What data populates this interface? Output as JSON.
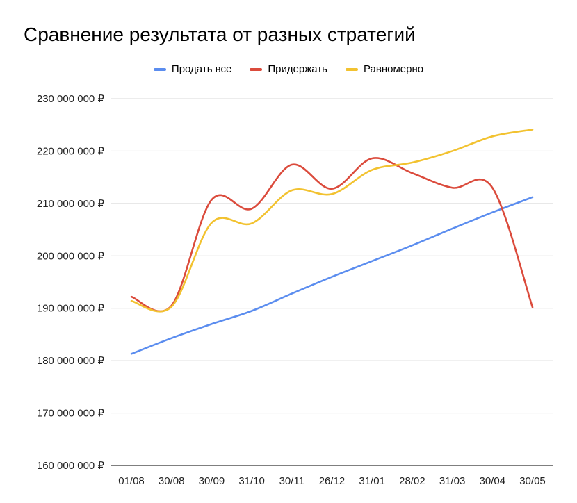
{
  "chart_data": {
    "type": "line",
    "title": "Сравнение результата от разных стратегий",
    "categories": [
      "01/08",
      "30/08",
      "30/09",
      "31/10",
      "30/11",
      "26/12",
      "31/01",
      "28/02",
      "31/03",
      "30/04",
      "30/05"
    ],
    "y_tick_labels": [
      "160 000 000 ₽",
      "170 000 000 ₽",
      "180 000 000 ₽",
      "190 000 000 ₽",
      "200 000 000 ₽",
      "210 000 000 ₽",
      "220 000 000 ₽",
      "230 000 000 ₽"
    ],
    "y_ticks": [
      160000000,
      170000000,
      180000000,
      190000000,
      200000000,
      210000000,
      220000000,
      230000000
    ],
    "ylim": [
      160000000,
      230000000
    ],
    "grid": true,
    "legend_position": "top",
    "series": [
      {
        "name": "Продать все",
        "color": "#5B8DEF",
        "values": [
          181300000,
          184300000,
          187000000,
          189500000,
          192800000,
          196000000,
          199000000,
          202000000,
          205200000,
          208300000,
          211200000
        ]
      },
      {
        "name": "Придержать",
        "color": "#DB4B3C",
        "values": [
          192200000,
          190500000,
          210700000,
          209000000,
          217400000,
          212800000,
          218600000,
          215800000,
          213000000,
          213000000,
          190200000
        ]
      },
      {
        "name": "Равномерно",
        "color": "#F2C230",
        "values": [
          191400000,
          190300000,
          206300000,
          206200000,
          212500000,
          211800000,
          216400000,
          217800000,
          220000000,
          222800000,
          224100000
        ]
      }
    ]
  }
}
